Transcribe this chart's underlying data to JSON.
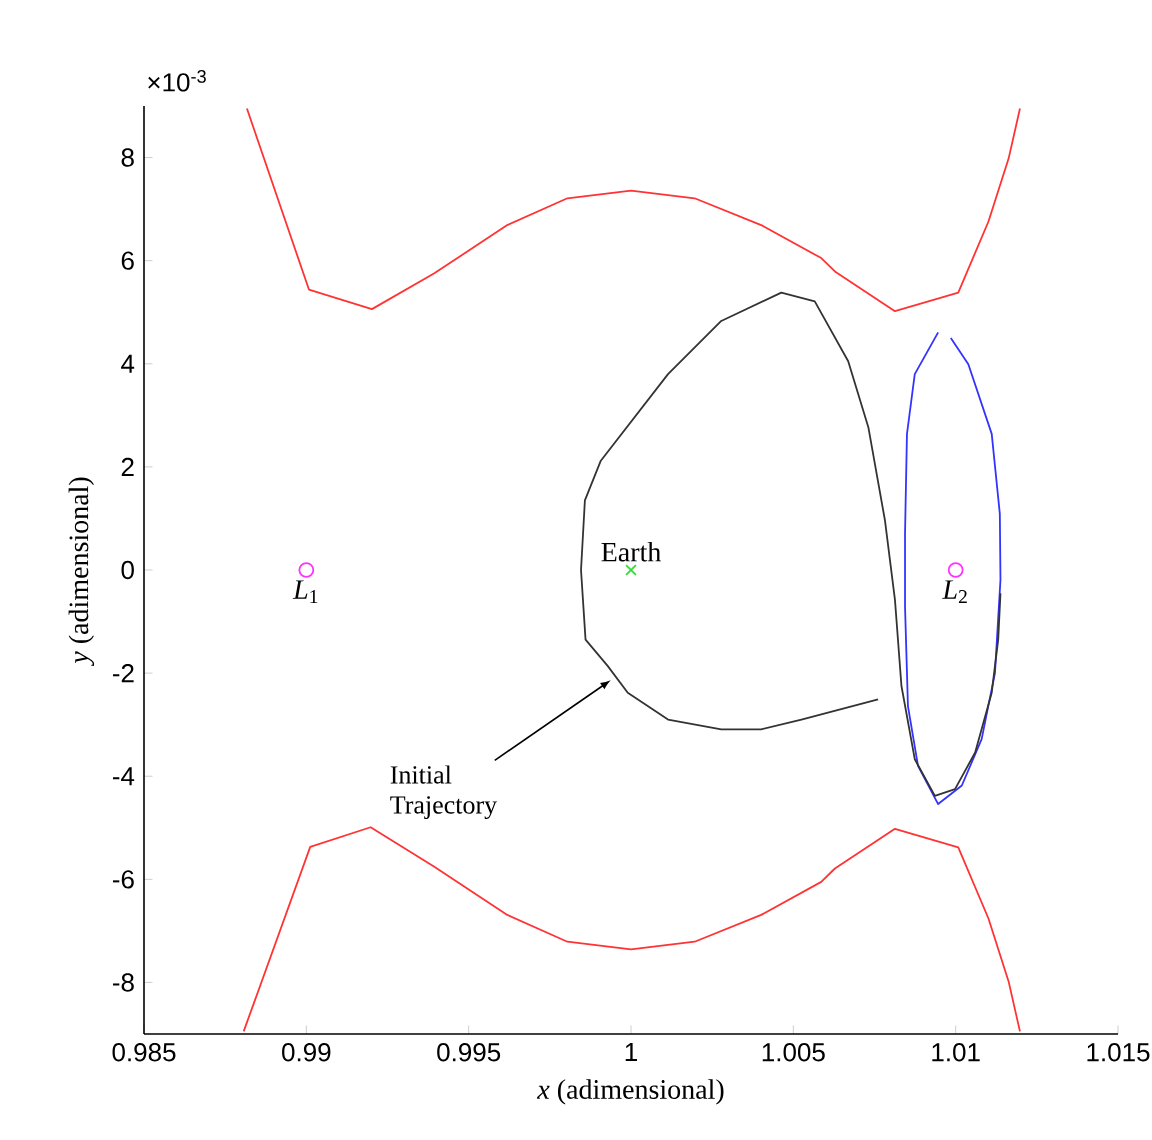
{
  "chart_data": {
    "type": "line",
    "xlabel": "*x* (adimensional)",
    "ylabel": "*y* (adimensional)",
    "xlim": [
      0.985,
      1.015
    ],
    "xticks": [
      0.985,
      0.99,
      0.995,
      1,
      1.005,
      1.01,
      1.015
    ],
    "ylim": [
      -9,
      9
    ],
    "yticks": [
      -8,
      -6,
      -4,
      -2,
      0,
      2,
      4,
      6,
      8
    ],
    "annotations": [
      "×10$^{-3}$",
      {
        "text": "Initial Trajectory",
        "x": 0.9995,
        "y": -2.06
      }
    ],
    "series": [
      {
        "color": "#ff3333",
        "x": [
          0.98817,
          0.99008,
          0.99202,
          0.99393,
          0.99619,
          0.99804,
          1.0,
          1.00196,
          1.00401,
          1.00586,
          1.00628,
          1.00813,
          1.01008,
          1.01101,
          1.01163,
          1.01198
        ],
        "values": [
          8.95,
          5.44,
          5.06,
          5.75,
          6.69,
          7.21,
          7.36,
          7.21,
          6.69,
          6.05,
          5.79,
          5.02,
          5.38,
          6.76,
          7.98,
          8.95
        ]
      },
      {
        "color": "#ff3333",
        "x": [
          0.98807,
          0.99012,
          0.99198,
          0.99393,
          0.99619,
          0.99804,
          1.0,
          1.00196,
          1.00401,
          1.00586,
          1.00628,
          1.00813,
          1.01008,
          1.01101,
          1.01163,
          1.01198
        ],
        "values": [
          -8.95,
          -5.37,
          -4.99,
          -5.75,
          -6.69,
          -7.21,
          -7.36,
          -7.21,
          -6.69,
          -6.05,
          -5.79,
          -5.02,
          -5.38,
          -6.76,
          -7.98,
          -8.95
        ]
      },
      {
        "color": "#3333ff",
        "x": [
          1.00946,
          1.00874,
          1.0085,
          1.00844,
          1.00844,
          1.00853,
          1.00884,
          1.00946,
          1.01019,
          1.0108,
          1.01121,
          1.01138,
          1.01136,
          1.01111,
          1.01039,
          1.00985
        ],
        "values": [
          4.61,
          3.8,
          2.64,
          0.71,
          -0.71,
          -2.64,
          -3.8,
          -4.54,
          -4.18,
          -3.28,
          -2.0,
          -0.19,
          1.09,
          2.64,
          3.99,
          4.5
        ]
      },
      {
        "color": "#333333",
        "x": [
          1.00761,
          1.00525,
          1.00401,
          1.00278,
          1.00114,
          0.9999,
          0.99928,
          0.9986,
          0.99846,
          0.99858,
          0.99907,
          1.00114,
          1.00278,
          1.00463,
          1.00566,
          1.00669,
          1.00731,
          1.00782,
          1.00813,
          1.00833,
          1.00874,
          1.00936,
          1.00998,
          1.0106,
          1.01111,
          1.01131,
          1.01138
        ],
        "values": [
          -2.51,
          -2.9,
          -3.09,
          -3.09,
          -2.9,
          -2.38,
          -1.86,
          -1.35,
          0,
          1.35,
          2.12,
          3.8,
          4.83,
          5.38,
          5.21,
          4.05,
          2.77,
          0.97,
          -0.58,
          -2.25,
          -3.67,
          -4.38,
          -4.25,
          -3.54,
          -2.38,
          -1.35,
          -0.45
        ]
      },
      {
        "type": "scatter",
        "name": "*L*$_{1}$",
        "color": "#ff33ff",
        "marker": "circle",
        "x": [
          0.99
        ],
        "values": [
          0
        ]
      },
      {
        "type": "scatter",
        "name": "Earth",
        "color": "#33dd33",
        "marker": "cross",
        "x": [
          1.0
        ],
        "values": [
          0
        ]
      },
      {
        "type": "scatter",
        "name": "*L*$_{2}$",
        "color": "#ff33ff",
        "marker": "circle",
        "x": [
          1.01
        ],
        "values": [
          0
        ]
      }
    ]
  }
}
